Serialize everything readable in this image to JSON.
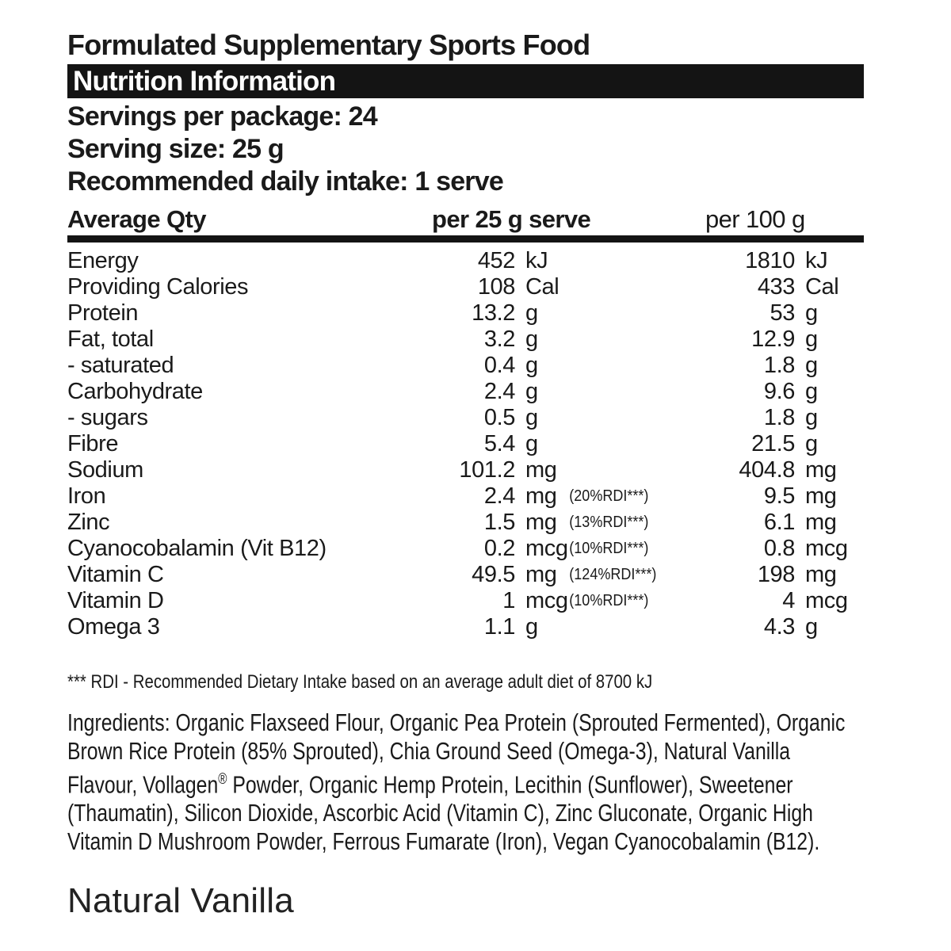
{
  "header": {
    "product_type": "Formulated Supplementary Sports Food",
    "panel_title": "Nutrition Information",
    "servings_per_package": "Servings per package: 24",
    "serving_size": "Serving size: 25 g",
    "daily_intake": "Recommended daily intake: 1 serve"
  },
  "table": {
    "columns": {
      "qty": "Average Qty",
      "per_serve": "per 25 g serve",
      "per_100": "per 100 g"
    },
    "rows": [
      {
        "name": "Energy",
        "serve_value": "452",
        "serve_unit": "kJ",
        "rdi_note": "",
        "per100_value": "1810",
        "per100_unit": "kJ"
      },
      {
        "name": "Providing Calories",
        "serve_value": "108",
        "serve_unit": "Cal",
        "rdi_note": "",
        "per100_value": "433",
        "per100_unit": "Cal"
      },
      {
        "name": "Protein",
        "serve_value": "13.2",
        "serve_unit": "g",
        "rdi_note": "",
        "per100_value": "53",
        "per100_unit": "g"
      },
      {
        "name": "Fat, total",
        "serve_value": "3.2",
        "serve_unit": "g",
        "rdi_note": "",
        "per100_value": "12.9",
        "per100_unit": "g"
      },
      {
        "name": "- saturated",
        "serve_value": "0.4",
        "serve_unit": "g",
        "rdi_note": "",
        "per100_value": "1.8",
        "per100_unit": "g"
      },
      {
        "name": "Carbohydrate",
        "serve_value": "2.4",
        "serve_unit": "g",
        "rdi_note": "",
        "per100_value": "9.6",
        "per100_unit": "g"
      },
      {
        "name": "- sugars",
        "serve_value": "0.5",
        "serve_unit": "g",
        "rdi_note": "",
        "per100_value": "1.8",
        "per100_unit": "g"
      },
      {
        "name": "Fibre",
        "serve_value": "5.4",
        "serve_unit": "g",
        "rdi_note": "",
        "per100_value": "21.5",
        "per100_unit": "g"
      },
      {
        "name": "Sodium",
        "serve_value": "101.2",
        "serve_unit": "mg",
        "rdi_note": "",
        "per100_value": "404.8",
        "per100_unit": "mg"
      },
      {
        "name": "Iron",
        "serve_value": "2.4",
        "serve_unit": "mg",
        "rdi_note": "(20%RDI***)",
        "per100_value": "9.5",
        "per100_unit": "mg"
      },
      {
        "name": "Zinc",
        "serve_value": "1.5",
        "serve_unit": "mg",
        "rdi_note": "(13%RDI***)",
        "per100_value": "6.1",
        "per100_unit": "mg"
      },
      {
        "name": "Cyanocobalamin (Vit B12)",
        "serve_value": "0.2",
        "serve_unit": "mcg",
        "rdi_note": "(10%RDI***)",
        "per100_value": "0.8",
        "per100_unit": "mcg"
      },
      {
        "name": "Vitamin C",
        "serve_value": "49.5",
        "serve_unit": "mg",
        "rdi_note": "(124%RDI***)",
        "per100_value": "198",
        "per100_unit": "mg"
      },
      {
        "name": "Vitamin D",
        "serve_value": "1",
        "serve_unit": "mcg",
        "rdi_note": "(10%RDI***)",
        "per100_value": "4",
        "per100_unit": "mcg"
      },
      {
        "name": "Omega 3",
        "serve_value": "1.1",
        "serve_unit": "g",
        "rdi_note": "",
        "per100_value": "4.3",
        "per100_unit": "g"
      }
    ]
  },
  "footnote": "*** RDI - Recommended Dietary Intake based on an average adult diet of 8700 kJ",
  "ingredients": {
    "text_before_mark": "Ingredients: Organic Flaxseed Flour, Organic Pea Protein (Sprouted Fermented), Organic Brown Rice Protein (85% Sprouted), Chia Ground Seed (Omega-3), Natural Vanilla Flavour, Vollagen",
    "registered_mark": "®",
    "text_after_mark": " Powder, Organic Hemp Protein, Lecithin (Sunflower), Sweetener (Thaumatin), Silicon Dioxide, Ascorbic Acid (Vitamin C), Zinc Gluconate, Organic High Vitamin D Mushroom Powder, Ferrous Fumarate (Iron), Vegan Cyanocobalamin (B12)."
  },
  "flavour": "Natural Vanilla",
  "colors": {
    "text": "#1a1a1a",
    "bar_bg": "#141414",
    "bar_text": "#ffffff"
  }
}
